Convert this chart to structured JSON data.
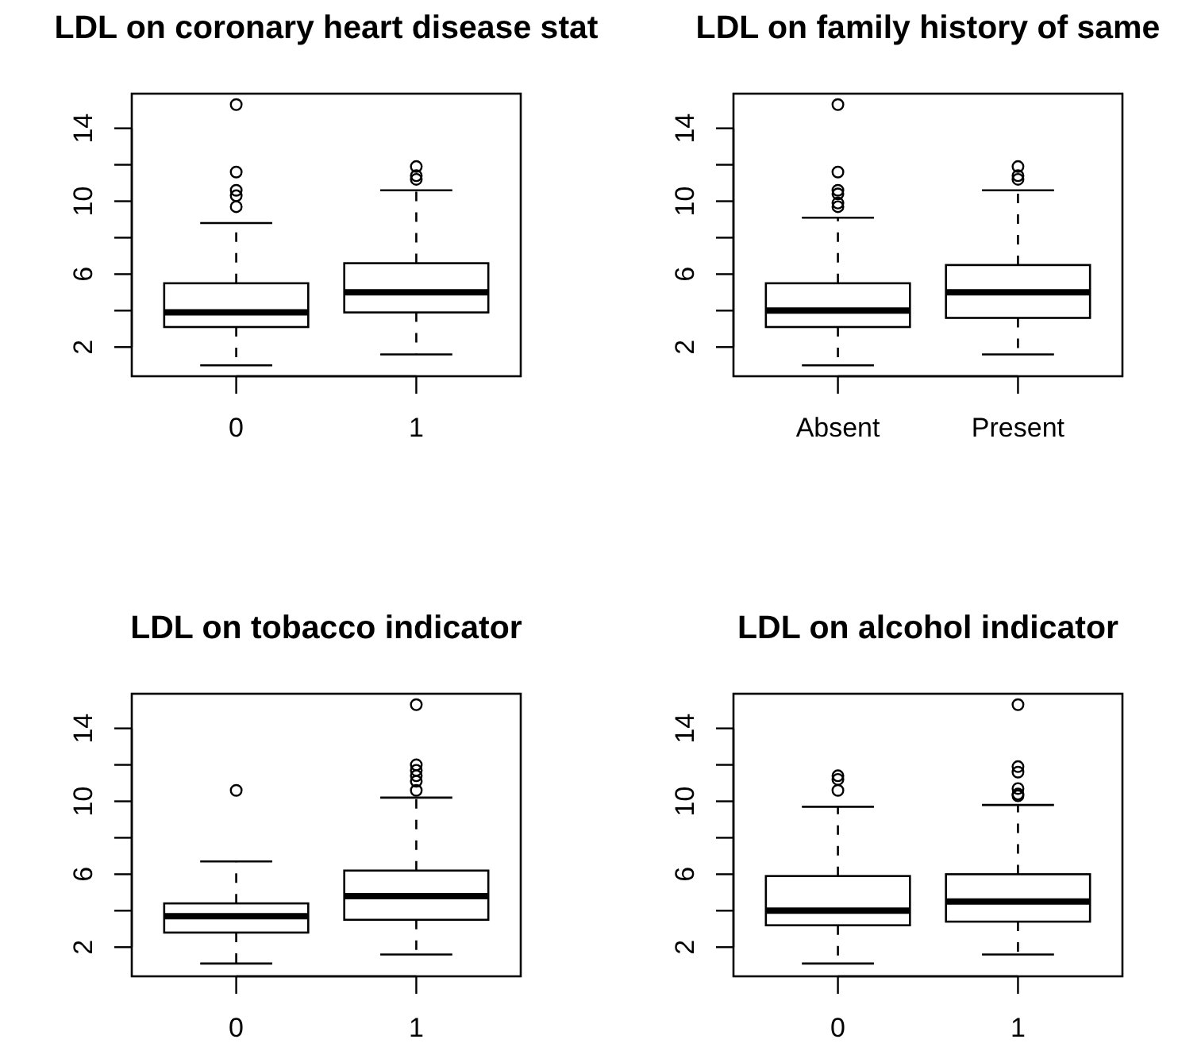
{
  "chart_data": [
    {
      "type": "box",
      "title": "LDL on coronary heart disease stat",
      "categories": [
        "0",
        "1"
      ],
      "boxes": [
        {
          "low": 1.0,
          "q1": 3.1,
          "median": 3.9,
          "q3": 5.5,
          "high": 8.8,
          "outliers": [
            15.3,
            11.6,
            10.6,
            10.3,
            9.7
          ]
        },
        {
          "low": 1.6,
          "q1": 3.9,
          "median": 5.0,
          "q3": 6.6,
          "high": 10.6,
          "outliers": [
            11.9,
            11.4,
            11.2
          ]
        }
      ],
      "ylim": [
        0.4,
        15.9
      ],
      "yticks": [
        2,
        {
          "value": 4,
          "label": null
        },
        6,
        {
          "value": 8,
          "label": null
        },
        10,
        {
          "value": 12,
          "label": null
        },
        14
      ]
    },
    {
      "type": "box",
      "title": "LDL on family history of same",
      "categories": [
        "Absent",
        "Present"
      ],
      "boxes": [
        {
          "low": 1.0,
          "q1": 3.1,
          "median": 4.0,
          "q3": 5.5,
          "high": 9.1,
          "outliers": [
            15.3,
            11.6,
            10.6,
            10.4,
            9.9,
            9.7
          ]
        },
        {
          "low": 1.6,
          "q1": 3.6,
          "median": 5.0,
          "q3": 6.5,
          "high": 10.6,
          "outliers": [
            11.9,
            11.4,
            11.2
          ]
        }
      ],
      "ylim": [
        0.4,
        15.9
      ],
      "yticks": [
        2,
        {
          "value": 4,
          "label": null
        },
        6,
        {
          "value": 8,
          "label": null
        },
        10,
        {
          "value": 12,
          "label": null
        },
        14
      ]
    },
    {
      "type": "box",
      "title": "LDL on tobacco indicator",
      "categories": [
        "0",
        "1"
      ],
      "boxes": [
        {
          "low": 1.1,
          "q1": 2.8,
          "median": 3.7,
          "q3": 4.4,
          "high": 6.7,
          "outliers": [
            10.6
          ]
        },
        {
          "low": 1.6,
          "q1": 3.5,
          "median": 4.8,
          "q3": 6.2,
          "high": 10.2,
          "outliers": [
            15.3,
            12.0,
            11.7,
            11.4,
            11.1,
            10.6
          ]
        }
      ],
      "ylim": [
        0.4,
        15.9
      ],
      "yticks": [
        2,
        {
          "value": 4,
          "label": null
        },
        6,
        {
          "value": 8,
          "label": null
        },
        10,
        {
          "value": 12,
          "label": null
        },
        14
      ]
    },
    {
      "type": "box",
      "title": "LDL on alcohol indicator",
      "categories": [
        "0",
        "1"
      ],
      "boxes": [
        {
          "low": 1.1,
          "q1": 3.2,
          "median": 4.0,
          "q3": 5.9,
          "high": 9.7,
          "outliers": [
            11.4,
            11.2,
            10.6
          ]
        },
        {
          "low": 1.6,
          "q1": 3.4,
          "median": 4.5,
          "q3": 6.0,
          "high": 9.8,
          "outliers": [
            15.3,
            11.9,
            11.6,
            10.7,
            10.4,
            10.3
          ]
        }
      ],
      "ylim": [
        0.4,
        15.9
      ],
      "yticks": [
        2,
        {
          "value": 4,
          "label": null
        },
        6,
        {
          "value": 8,
          "label": null
        },
        10,
        {
          "value": 12,
          "label": null
        },
        14
      ]
    }
  ]
}
